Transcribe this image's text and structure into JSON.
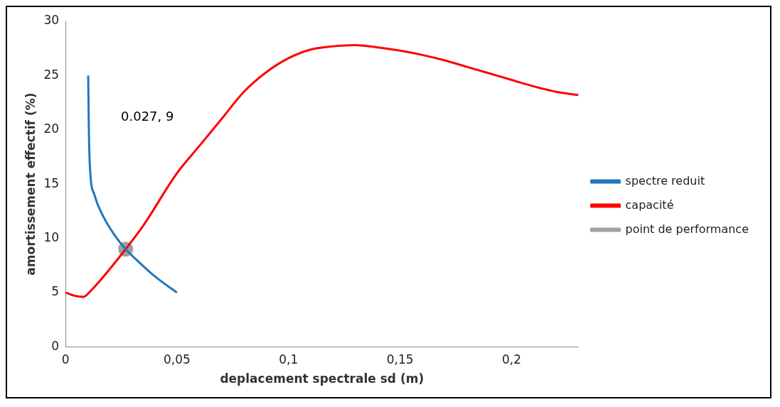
{
  "chart_data": {
    "type": "line",
    "xlabel": "deplacement spectrale sd (m)",
    "ylabel": "amortissement effectif (%)",
    "xlim": [
      0,
      0.23
    ],
    "xticks": [
      0,
      {
        "value": 0.05,
        "label": "0,05"
      },
      {
        "value": 0.1,
        "label": "0,1"
      },
      {
        "value": 0.15,
        "label": "0,15"
      },
      {
        "value": 0.2,
        "label": "0,2"
      }
    ],
    "ylim": [
      0,
      30
    ],
    "yticks": [
      0,
      5,
      10,
      15,
      20,
      25,
      30
    ],
    "grid": false,
    "legend": "right",
    "marker": "none",
    "line_style": "solid",
    "annotations": [
      "0.027, 9"
    ],
    "series": [
      {
        "name": "spectre reduit",
        "color": "#1f77c0",
        "x": [
          0.0102,
          0.0105,
          0.011,
          0.013,
          0.017,
          0.022,
          0.027,
          0.033,
          0.04,
          0.05
        ],
        "values": [
          25,
          20,
          16.5,
          14,
          12,
          10.3,
          9,
          7.8,
          6.5,
          5
        ]
      },
      {
        "name": "capacité",
        "color": "#ff0000",
        "x": [
          0,
          0.004,
          0.008,
          0.012,
          0.02,
          0.027,
          0.035,
          0.05,
          0.06,
          0.07,
          0.08,
          0.09,
          0.1,
          0.11,
          0.12,
          0.13,
          0.14,
          0.15,
          0.16,
          0.17,
          0.18,
          0.19,
          0.2,
          0.21,
          0.22,
          0.23
        ],
        "values": [
          5,
          4.7,
          4.6,
          5.3,
          7.2,
          9,
          11.2,
          16,
          18.5,
          21,
          23.5,
          25.3,
          26.6,
          27.4,
          27.7,
          27.8,
          27.6,
          27.3,
          26.9,
          26.4,
          25.8,
          25.2,
          24.6,
          24,
          23.5,
          23.2
        ]
      },
      {
        "name": "point de performance",
        "type": "scatter",
        "color": "#a0a0a0",
        "marker": "circle",
        "x": [
          0.027
        ],
        "values": [
          9
        ]
      }
    ]
  }
}
